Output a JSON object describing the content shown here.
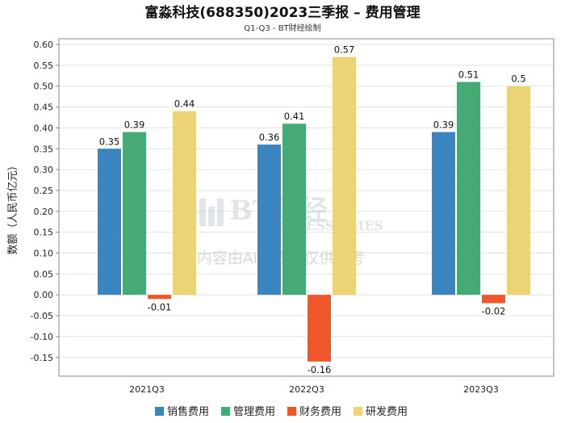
{
  "chart_data": {
    "type": "bar",
    "title": "富淼科技(688350)2023三季报 – 费用管理",
    "subtitle": "Q1-Q3 - BT财经绘制",
    "xlabel": "",
    "ylabel": "数额（人民币亿元）",
    "ylim": [
      -0.2,
      0.6
    ],
    "yticks": [
      "0.60",
      "0.55",
      "0.50",
      "0.45",
      "0.40",
      "0.35",
      "0.30",
      "0.25",
      "0.20",
      "0.15",
      "0.10",
      "0.05",
      "0.00",
      "-0.05",
      "-0.10",
      "-0.15"
    ],
    "categories": [
      "2021Q3",
      "2022Q3",
      "2023Q3"
    ],
    "series": [
      {
        "name": "销售费用",
        "color": "#3a84c0",
        "values": [
          0.35,
          0.36,
          0.39
        ],
        "labels": [
          "0.35",
          "0.36",
          "0.39"
        ]
      },
      {
        "name": "管理费用",
        "color": "#45aa73",
        "values": [
          0.39,
          0.41,
          0.51
        ],
        "labels": [
          "0.39",
          "0.41",
          "0.51"
        ]
      },
      {
        "name": "财务费用",
        "color": "#ef5728",
        "values": [
          -0.01,
          -0.16,
          -0.02
        ],
        "labels": [
          "-0.01",
          "-0.16",
          "-0.02"
        ]
      },
      {
        "name": "研发费用",
        "color": "#ecd476",
        "values": [
          0.44,
          0.57,
          0.5
        ],
        "labels": [
          "0.44",
          "0.57",
          "0.5"
        ]
      }
    ],
    "legend_position": "bottom",
    "grid": true
  },
  "watermark": {
    "brand": "BT财经",
    "brand_sub": "BUSINESSTIMES",
    "note": "内容由AI生成，仅供参考"
  }
}
